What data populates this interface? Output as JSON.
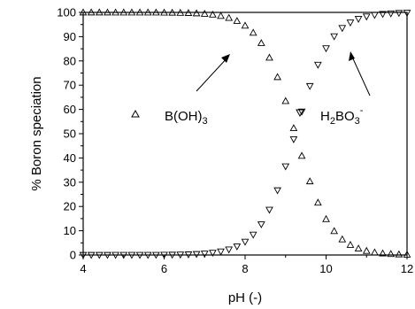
{
  "chart_data": {
    "type": "scatter",
    "title": "",
    "xlabel": "pH (-)",
    "ylabel": "% Boron speciation",
    "xlim": [
      4,
      12
    ],
    "ylim": [
      0,
      100
    ],
    "xticks": [
      4,
      6,
      8,
      10,
      12
    ],
    "yticks": [
      0,
      10,
      20,
      30,
      40,
      50,
      60,
      70,
      80,
      90,
      100
    ],
    "grid": false,
    "pKa": 9.24,
    "x_step": 0.2,
    "series": [
      {
        "name": "B(OH)3",
        "marker": "triangle-up",
        "color": "#000000",
        "formula": "100/(1+10^(pH-pKa))"
      },
      {
        "name": "H2BO3-",
        "marker": "triangle-down",
        "color": "#000000",
        "formula": "100/(1+10^(pKa-pH))"
      }
    ],
    "annotations": {
      "legend_boh3": {
        "label": "B(OH)",
        "sub": "3"
      },
      "legend_h2bo3": {
        "pre": "H",
        "sub1": "2",
        "mid": "BO",
        "sub2": "3",
        "sup": "-"
      }
    }
  }
}
